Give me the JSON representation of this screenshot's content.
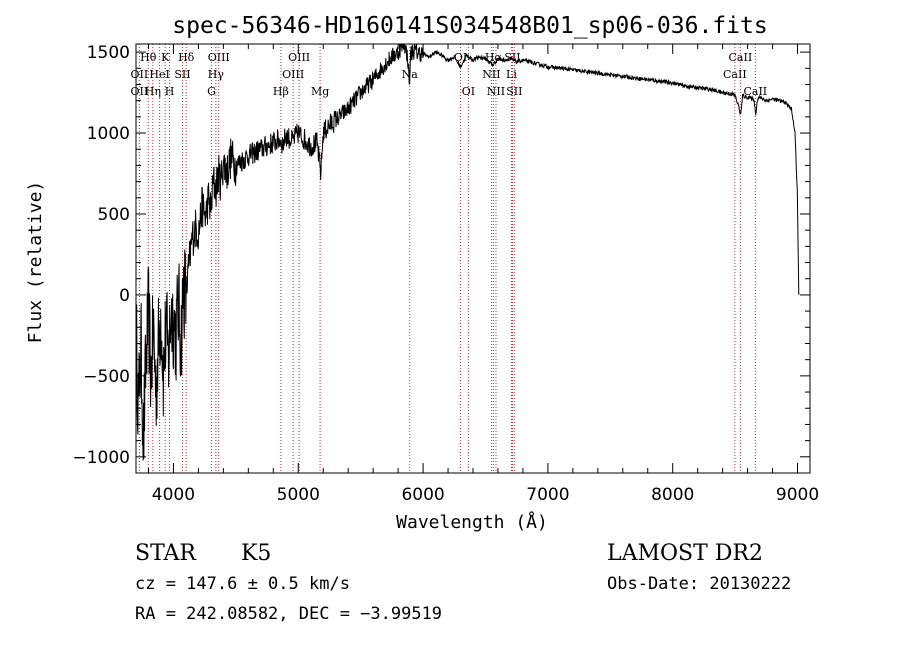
{
  "chart_data": {
    "type": "line",
    "title": "spec-56346-HD160141S034548B01_sp06-036.fits",
    "xlabel": "Wavelength (Å)",
    "ylabel": "Flux (relative)",
    "xlim": [
      3700,
      9100
    ],
    "ylim": [
      -1100,
      1550
    ],
    "x_ticks": [
      4000,
      5000,
      6000,
      7000,
      8000,
      9000
    ],
    "x_tick_labels": [
      "4000",
      "5000",
      "6000",
      "7000",
      "8000",
      "9000"
    ],
    "y_ticks": [
      -1000,
      -500,
      0,
      500,
      1000,
      1500
    ],
    "y_tick_labels": [
      "−1000",
      "−500",
      "0",
      "500",
      "1000",
      "1500"
    ],
    "grid": false,
    "line_color": "#000000",
    "marker_color": "#b03030",
    "series": [
      {
        "x": [
          3700,
          3720,
          3740,
          3760,
          3780,
          3800,
          3820,
          3840,
          3860,
          3880,
          3900,
          3920,
          3940,
          3960,
          3980,
          4000,
          4020,
          4040,
          4060,
          4080,
          4100,
          4120,
          4150,
          4180,
          4200,
          4230,
          4260,
          4280,
          4300,
          4320,
          4340,
          4360,
          4380,
          4400,
          4430,
          4460,
          4500,
          4550,
          4600,
          4650,
          4700,
          4750,
          4800,
          4850,
          4880,
          4900,
          4950,
          5000,
          5050,
          5100,
          5150,
          5180,
          5200,
          5250,
          5300,
          5400,
          5500,
          5600,
          5700,
          5750,
          5800,
          5850,
          5880,
          5890,
          5900,
          5920,
          5950,
          6000,
          6050,
          6100,
          6150,
          6200,
          6250,
          6300,
          6350,
          6400,
          6450,
          6500,
          6560,
          6600,
          6650,
          6700,
          6750,
          6800,
          6900,
          7000,
          7100,
          7200,
          7300,
          7400,
          7500,
          7600,
          7700,
          7800,
          7900,
          8000,
          8100,
          8200,
          8300,
          8400,
          8480,
          8500,
          8530,
          8545,
          8560,
          8600,
          8650,
          8665,
          8680,
          8700,
          8750,
          8800,
          8850,
          8900,
          8950,
          8980,
          9000,
          9010
        ],
        "y": [
          -200,
          -700,
          -300,
          -900,
          -400,
          -100,
          -500,
          -200,
          -600,
          -300,
          -100,
          -500,
          -200,
          -400,
          -100,
          -150,
          -250,
          -50,
          -300,
          50,
          0,
          150,
          350,
          420,
          380,
          550,
          480,
          600,
          520,
          700,
          650,
          750,
          700,
          820,
          760,
          850,
          800,
          830,
          860,
          880,
          900,
          920,
          940,
          960,
          930,
          990,
          950,
          1000,
          960,
          920,
          940,
          750,
          1000,
          1050,
          1080,
          1150,
          1250,
          1330,
          1430,
          1470,
          1500,
          1560,
          1450,
          1280,
          1490,
          1510,
          1500,
          1490,
          1470,
          1500,
          1480,
          1450,
          1470,
          1410,
          1480,
          1450,
          1470,
          1460,
          1420,
          1460,
          1450,
          1460,
          1440,
          1450,
          1430,
          1410,
          1400,
          1390,
          1380,
          1370,
          1360,
          1350,
          1340,
          1330,
          1320,
          1310,
          1290,
          1280,
          1270,
          1250,
          1240,
          1230,
          1160,
          1110,
          1230,
          1220,
          1210,
          1120,
          1210,
          1220,
          1200,
          1210,
          1200,
          1190,
          1150,
          1000,
          600,
          0
        ]
      }
    ],
    "annotations": [
      {
        "label": "Hθ",
        "x": 3798,
        "row": 1
      },
      {
        "label": "K",
        "x": 3934,
        "row": 1
      },
      {
        "label": "Hδ",
        "x": 4102,
        "row": 1
      },
      {
        "label": "OIII",
        "x": 4363,
        "row": 1
      },
      {
        "label": "OIII",
        "x": 5007,
        "row": 1
      },
      {
        "label": "OI",
        "x": 6300,
        "row": 1
      },
      {
        "label": "Hα",
        "x": 6563,
        "row": 1
      },
      {
        "label": "SII",
        "x": 6716,
        "row": 1
      },
      {
        "label": "CaII",
        "x": 8542,
        "row": 1
      },
      {
        "label": "OII",
        "x": 3727,
        "row": 2
      },
      {
        "label": "HeI",
        "x": 3889,
        "row": 2
      },
      {
        "label": "SII",
        "x": 4072,
        "row": 2
      },
      {
        "label": "Hγ",
        "x": 4340,
        "row": 2
      },
      {
        "label": "OIII",
        "x": 4959,
        "row": 2
      },
      {
        "label": "Na",
        "x": 5893,
        "row": 2
      },
      {
        "label": "NII",
        "x": 6548,
        "row": 2
      },
      {
        "label": "Li",
        "x": 6708,
        "row": 2
      },
      {
        "label": "CaII",
        "x": 8498,
        "row": 2
      },
      {
        "label": "OII",
        "x": 3727,
        "row": 3
      },
      {
        "label": "Hη",
        "x": 3835,
        "row": 3
      },
      {
        "label": "H",
        "x": 3969,
        "row": 3
      },
      {
        "label": "G",
        "x": 4305,
        "row": 3
      },
      {
        "label": "Hβ",
        "x": 4861,
        "row": 3
      },
      {
        "label": "Mg",
        "x": 5175,
        "row": 3
      },
      {
        "label": "OI",
        "x": 6363,
        "row": 3
      },
      {
        "label": "NII",
        "x": 6584,
        "row": 3
      },
      {
        "label": "SII",
        "x": 6731,
        "row": 3
      },
      {
        "label": "CaII",
        "x": 8662,
        "row": 3
      }
    ],
    "line_markers_x": [
      3727,
      3798,
      3835,
      3889,
      3934,
      3969,
      4072,
      4102,
      4305,
      4340,
      4363,
      4861,
      4959,
      5007,
      5175,
      5893,
      6300,
      6363,
      6548,
      6563,
      6584,
      6708,
      6716,
      6731,
      8498,
      8542,
      8662
    ]
  },
  "info": {
    "class_label": "STAR",
    "subclass": "K5",
    "survey": "LAMOST DR2",
    "redshift": "cz = 147.6 ± 0.5 km/s",
    "obs_date": "Obs-Date: 20130222",
    "coords": "RA = 242.08582, DEC =  −3.99519"
  }
}
